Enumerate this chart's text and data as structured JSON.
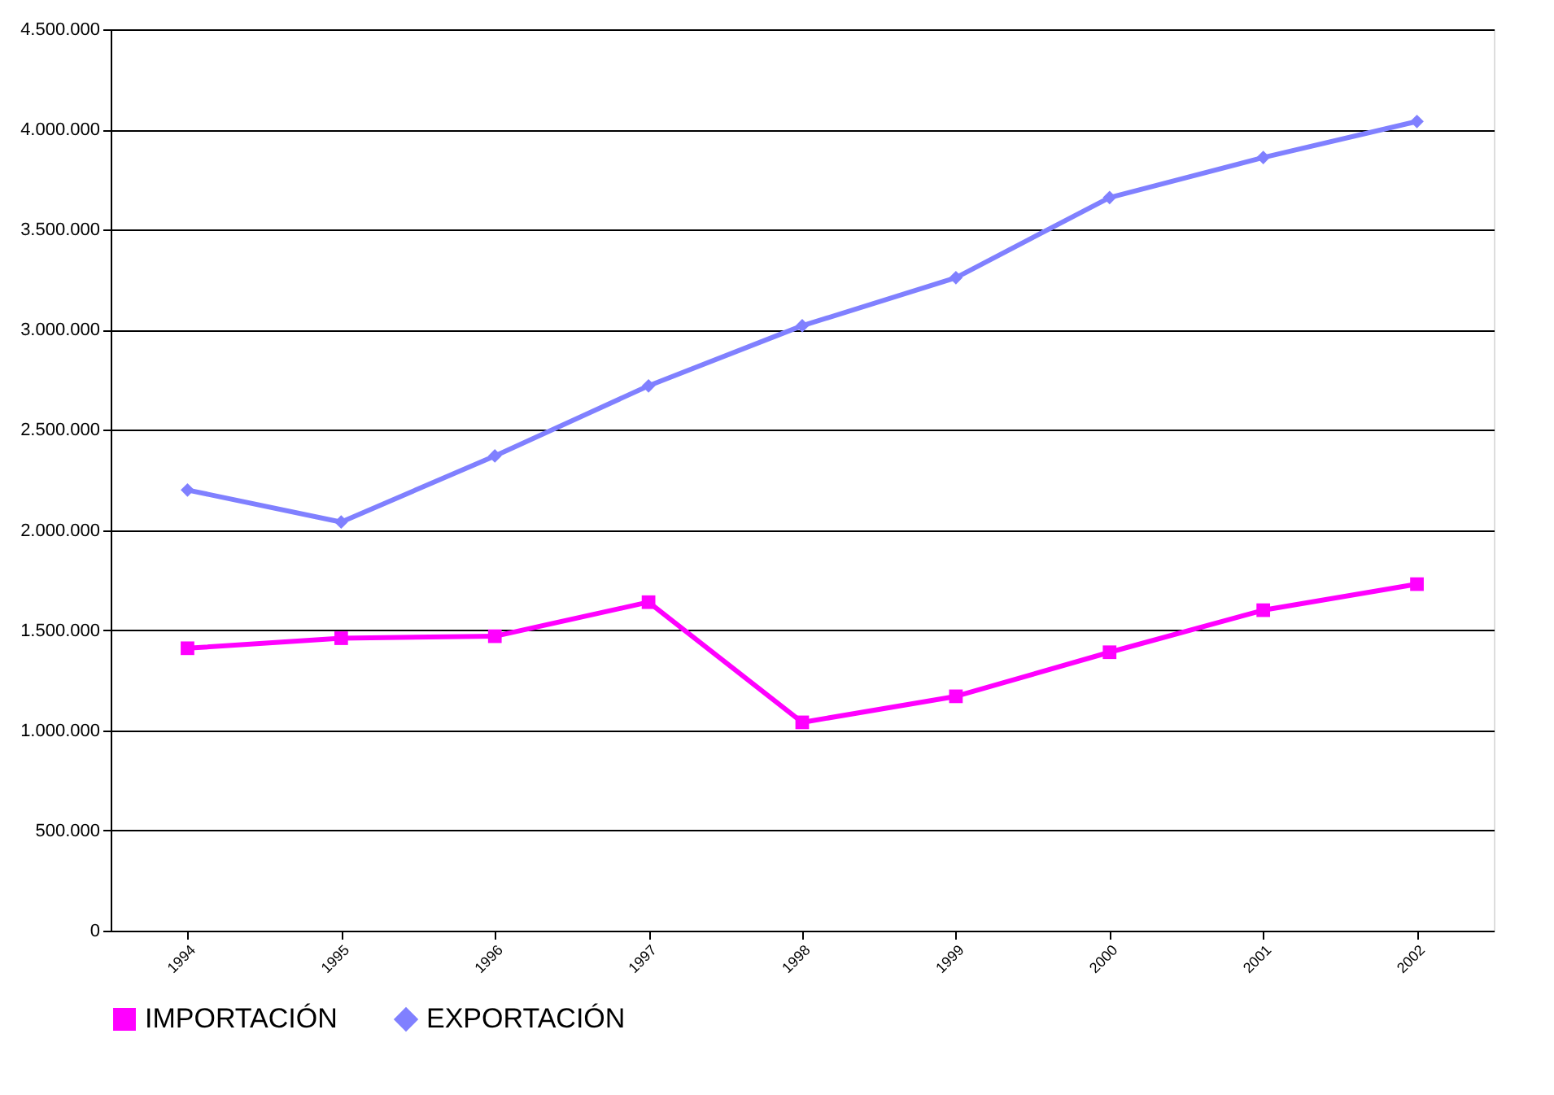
{
  "chart_data": {
    "type": "line",
    "categories": [
      "1994",
      "1995",
      "1996",
      "1997",
      "1998",
      "1999",
      "2000",
      "2001",
      "2002"
    ],
    "series": [
      {
        "name": "IMPORTACIÓN",
        "color": "#ff00ff",
        "marker": "square",
        "values": [
          1410000,
          1460000,
          1470000,
          1640000,
          1040000,
          1170000,
          1390000,
          1600000,
          1730000
        ]
      },
      {
        "name": "EXPORTACIÓN",
        "color": "#8080ff",
        "marker": "diamond",
        "values": [
          2200000,
          2040000,
          2370000,
          2720000,
          3020000,
          3260000,
          3660000,
          3860000,
          4040000
        ]
      }
    ],
    "ylim": [
      0,
      4500000
    ],
    "yticks": [
      0,
      {
        "value": 500000,
        "label": "500.000"
      },
      {
        "value": 1000000,
        "label": "1.000.000"
      },
      {
        "value": 1500000,
        "label": "1.500.000"
      },
      {
        "value": 2000000,
        "label": "2.000.000"
      },
      {
        "value": 2500000,
        "label": "2.500.000"
      },
      {
        "value": 3000000,
        "label": "3.000.000"
      },
      {
        "value": 3500000,
        "label": "3.500.000"
      },
      {
        "value": 4000000,
        "label": "4.000.000"
      },
      {
        "value": 4500000,
        "label": "4.500.000"
      }
    ],
    "grid": "y",
    "legend": "bottom",
    "line_style": "solid"
  }
}
